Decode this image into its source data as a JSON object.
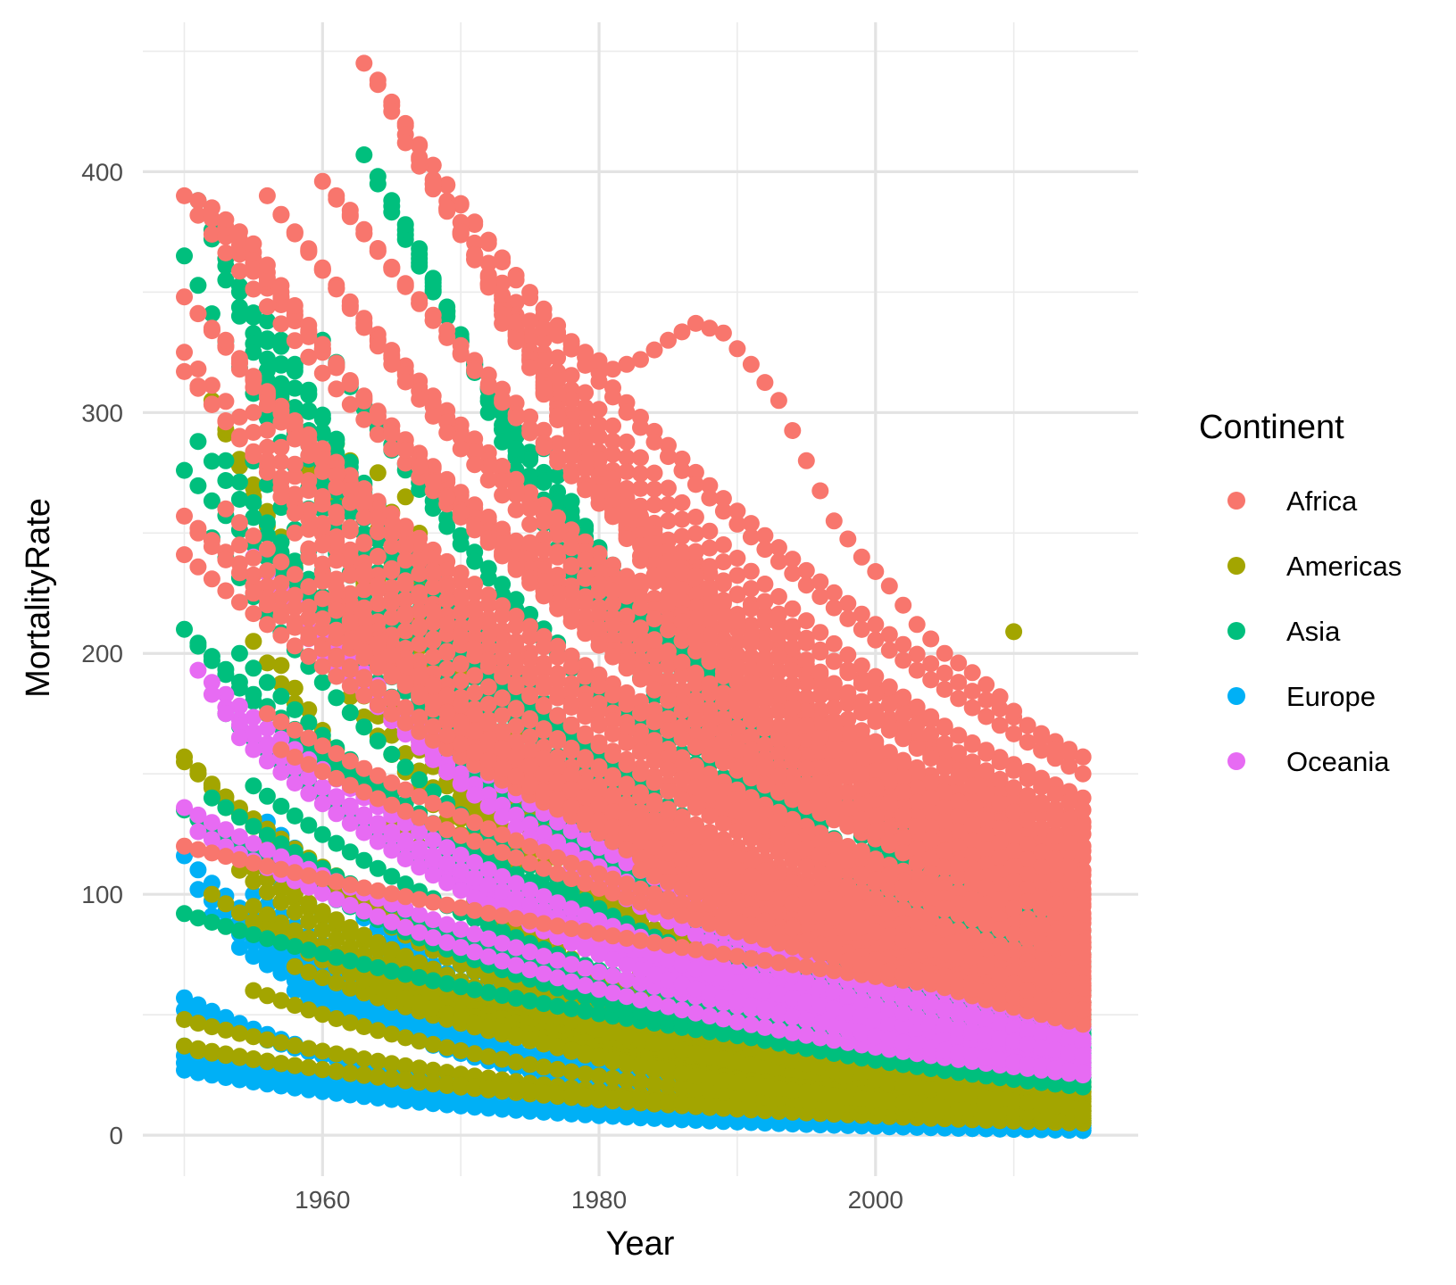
{
  "chart_data": {
    "type": "scatter",
    "title": "",
    "xlabel": "Year",
    "ylabel": "MortalityRate",
    "xlim": [
      1947,
      2019
    ],
    "ylim": [
      -17,
      462
    ],
    "x_ticks": [
      1960,
      1980,
      2000
    ],
    "x_tick_labels": [
      "1960",
      "1980",
      "2000"
    ],
    "x_minor_ticks": [
      1950,
      1970,
      1990,
      2010
    ],
    "y_ticks": [
      0,
      100,
      200,
      300,
      400
    ],
    "y_tick_labels": [
      "0",
      "100",
      "200",
      "300",
      "400"
    ],
    "y_minor_ticks": [
      50,
      150,
      250,
      350,
      450
    ],
    "grid": true,
    "legend": {
      "title": "Continent",
      "position": "right",
      "entries": [
        "Africa",
        "Americas",
        "Asia",
        "Europe",
        "Oceania"
      ]
    },
    "colors": {
      "Africa": "#F8766D",
      "Americas": "#A3A500",
      "Asia": "#00BF7D",
      "Europe": "#00B0F6",
      "Oceania": "#E76BF3"
    },
    "x_range": [
      1950,
      2015
    ],
    "series": [
      {
        "name": "Europe",
        "lines": [
          [
            1950,
            116,
            2015,
            4
          ],
          [
            1950,
            57,
            2015,
            2
          ],
          [
            1950,
            52,
            2015,
            3
          ],
          [
            1950,
            37,
            2015,
            2
          ],
          [
            1950,
            33,
            2015,
            3
          ],
          [
            1950,
            30,
            2015,
            2
          ],
          [
            1950,
            27,
            2015,
            2
          ],
          [
            1952,
            91,
            2015,
            6
          ],
          [
            1951,
            102,
            2015,
            5
          ],
          [
            1954,
            120,
            2015,
            8
          ],
          [
            1955,
            100,
            2015,
            6
          ],
          [
            1956,
            130,
            2015,
            10
          ],
          [
            1954,
            78,
            2015,
            4
          ],
          [
            1956,
            75,
            2015,
            5
          ],
          [
            1958,
            60,
            2015,
            4
          ],
          [
            1960,
            55,
            2015,
            5
          ],
          [
            1952,
            48,
            2015,
            3
          ],
          [
            1953,
            45,
            2015,
            3
          ],
          [
            1959,
            110,
            2015,
            7
          ],
          [
            1962,
            95,
            2015,
            6
          ]
        ]
      },
      {
        "name": "Americas",
        "lines": [
          [
            1950,
            157,
            2015,
            14
          ],
          [
            1950,
            155,
            2015,
            18
          ],
          [
            1951,
            150,
            2015,
            12
          ],
          [
            1952,
            305,
            2015,
            16
          ],
          [
            1953,
            293,
            2015,
            20
          ],
          [
            1955,
            270,
            2015,
            22
          ],
          [
            1957,
            305,
            2015,
            18
          ],
          [
            1958,
            300,
            2015,
            25
          ],
          [
            1959,
            292,
            2015,
            18
          ],
          [
            1961,
            287,
            2015,
            20
          ],
          [
            1962,
            280,
            2015,
            16
          ],
          [
            1964,
            275,
            2015,
            12
          ],
          [
            1966,
            265,
            2015,
            15
          ],
          [
            1953,
            120,
            2015,
            10
          ],
          [
            1954,
            110,
            2015,
            8
          ],
          [
            1955,
            95,
            2015,
            10
          ],
          [
            1956,
            90,
            2015,
            7
          ],
          [
            1958,
            100,
            2015,
            12
          ],
          [
            1960,
            75,
            2015,
            9
          ],
          [
            1950,
            48,
            2015,
            6
          ],
          [
            1950,
            37,
            2015,
            5
          ],
          [
            1951,
            35,
            2015,
            6
          ],
          [
            1955,
            60,
            2015,
            7
          ],
          [
            1958,
            70,
            2015,
            10
          ],
          [
            1960,
            200,
            2015,
            15
          ],
          [
            1962,
            240,
            2015,
            20
          ],
          [
            1965,
            180,
            2015,
            12
          ],
          [
            1952,
            100,
            2015,
            8
          ],
          [
            1955,
            205,
            2015,
            14
          ],
          [
            1957,
            195,
            2015,
            11
          ]
        ],
        "points": [
          [
            2010,
            209
          ],
          [
            1999,
            26
          ]
        ]
      },
      {
        "name": "Asia",
        "lines": [
          [
            1950,
            365,
            2015,
            40
          ],
          [
            1950,
            276,
            2015,
            60
          ],
          [
            1950,
            210,
            2015,
            35
          ],
          [
            1950,
            92,
            2015,
            25
          ],
          [
            1951,
            388,
            2015,
            50
          ],
          [
            1951,
            288,
            2015,
            45
          ],
          [
            1951,
            203,
            2015,
            30
          ],
          [
            1952,
            372,
            2015,
            55
          ],
          [
            1952,
            248,
            2015,
            28
          ],
          [
            1953,
            355,
            2015,
            48
          ],
          [
            1953,
            280,
            2015,
            38
          ],
          [
            1954,
            340,
            2015,
            42
          ],
          [
            1954,
            290,
            2015,
            33
          ],
          [
            1955,
            325,
            2015,
            36
          ],
          [
            1956,
            338,
            2015,
            52
          ],
          [
            1957,
            330,
            2015,
            44
          ],
          [
            1958,
            320,
            2015,
            46
          ],
          [
            1959,
            260,
            2015,
            32
          ],
          [
            1960,
            330,
            2015,
            70
          ],
          [
            1961,
            320,
            2015,
            65
          ],
          [
            1963,
            407,
            2015,
            85
          ],
          [
            1964,
            398,
            2015,
            80
          ],
          [
            1965,
            388,
            2015,
            78
          ],
          [
            1966,
            378,
            2015,
            75
          ],
          [
            1967,
            368,
            2015,
            72
          ],
          [
            1968,
            355,
            2015,
            62
          ],
          [
            1969,
            342,
            2015,
            58
          ],
          [
            1970,
            330,
            2015,
            55
          ],
          [
            1972,
            300,
            2015,
            50
          ],
          [
            1974,
            285,
            2015,
            48
          ],
          [
            1976,
            285,
            2015,
            60
          ],
          [
            1952,
            140,
            2015,
            22
          ],
          [
            1953,
            175,
            2015,
            26
          ],
          [
            1955,
            145,
            2015,
            24
          ],
          [
            1956,
            160,
            2015,
            28
          ],
          [
            1950,
            135,
            2015,
            20
          ],
          [
            1954,
            200,
            2015,
            30
          ],
          [
            1958,
            230,
            2015,
            34
          ],
          [
            1960,
            250,
            2015,
            38
          ],
          [
            1962,
            265,
            2015,
            42
          ]
        ]
      },
      {
        "name": "Oceania",
        "lines": [
          [
            1950,
            136,
            2015,
            30
          ],
          [
            1951,
            193,
            2015,
            35
          ],
          [
            1951,
            126,
            2015,
            25
          ],
          [
            1952,
            183,
            2015,
            28
          ],
          [
            1953,
            175,
            2015,
            32
          ],
          [
            1954,
            165,
            2015,
            26
          ],
          [
            1956,
            225,
            2015,
            40
          ],
          [
            1959,
            210,
            2015,
            38
          ],
          [
            1962,
            190,
            2015,
            33
          ],
          [
            1955,
            240,
            2015,
            45
          ]
        ]
      },
      {
        "name": "Africa",
        "lines": [
          [
            1950,
            390,
            2015,
            100
          ],
          [
            1950,
            348,
            2015,
            95
          ],
          [
            1950,
            325,
            2015,
            80
          ],
          [
            1950,
            317,
            2015,
            75
          ],
          [
            1950,
            257,
            2015,
            70
          ],
          [
            1950,
            241,
            2015,
            60
          ],
          [
            1950,
            120,
            2015,
            55
          ],
          [
            1951,
            388,
            2015,
            110
          ],
          [
            1951,
            341,
            2015,
            90
          ],
          [
            1951,
            311,
            2015,
            65
          ],
          [
            1951,
            250,
            2015,
            58
          ],
          [
            1952,
            385,
            2015,
            105
          ],
          [
            1953,
            380,
            2015,
            98
          ],
          [
            1954,
            375,
            2015,
            92
          ],
          [
            1955,
            370,
            2015,
            88
          ],
          [
            1956,
            390,
            2015,
            120
          ],
          [
            1957,
            382,
            2015,
            115
          ],
          [
            1958,
            375,
            2015,
            110
          ],
          [
            1959,
            368,
            2015,
            100
          ],
          [
            1960,
            396,
            2015,
            140
          ],
          [
            1961,
            390,
            2015,
            130
          ],
          [
            1962,
            384,
            2015,
            125
          ],
          [
            1963,
            445,
            2015,
            157
          ],
          [
            1964,
            438,
            2015,
            150
          ],
          [
            1965,
            425,
            2015,
            135
          ],
          [
            1966,
            412,
            2015,
            128
          ],
          [
            1967,
            405,
            2015,
            118
          ],
          [
            1968,
            395,
            2015,
            108
          ],
          [
            1969,
            385,
            2015,
            102
          ],
          [
            1970,
            375,
            2015,
            96
          ],
          [
            1971,
            365,
            2015,
            90
          ],
          [
            1972,
            352,
            2015,
            85
          ],
          [
            1974,
            330,
            2015,
            78
          ],
          [
            1976,
            310,
            2015,
            72
          ],
          [
            1955,
            300,
            2015,
            68
          ],
          [
            1956,
            280,
            2015,
            62
          ],
          [
            1957,
            265,
            2015,
            58
          ],
          [
            1958,
            250,
            2015,
            55
          ],
          [
            1959,
            240,
            2015,
            52
          ],
          [
            1960,
            230,
            2015,
            50
          ],
          [
            1961,
            220,
            2015,
            48
          ],
          [
            1962,
            210,
            2015,
            46
          ],
          [
            1952,
            335,
            2015,
            82
          ],
          [
            1953,
            330,
            2015,
            78
          ],
          [
            1954,
            318,
            2015,
            74
          ],
          [
            1953,
            260,
            2015,
            66
          ],
          [
            1954,
            245,
            2015,
            63
          ],
          [
            1955,
            225,
            2015,
            61
          ],
          [
            1956,
            175,
            2015,
            54
          ],
          [
            1957,
            160,
            2015,
            52
          ]
        ],
        "curves": [
          [
            [
              1973,
              337
            ],
            [
              1975,
              338
            ],
            [
              1977,
              332
            ],
            [
              1979,
              325
            ],
            [
              1981,
              318
            ],
            [
              1983,
              322
            ],
            [
              1985,
              330
            ],
            [
              1987,
              337
            ],
            [
              1989,
              333
            ],
            [
              1991,
              320
            ],
            [
              1993,
              305
            ],
            [
              1995,
              280
            ],
            [
              1997,
              255
            ],
            [
              1999,
              240
            ],
            [
              2001,
              228
            ],
            [
              2003,
              212
            ],
            [
              2005,
              200
            ],
            [
              2007,
              192
            ],
            [
              2009,
              182
            ],
            [
              2011,
              170
            ],
            [
              2013,
              160
            ],
            [
              2015,
              157
            ]
          ],
          [
            [
              1975,
              246
            ],
            [
              1977,
              240
            ],
            [
              1979,
              232
            ],
            [
              1981,
              226
            ],
            [
              1983,
              230
            ],
            [
              1985,
              235
            ],
            [
              1987,
              232
            ],
            [
              1989,
              222
            ],
            [
              1991,
              205
            ],
            [
              1993,
              185
            ],
            [
              1995,
              170
            ],
            [
              1997,
              160
            ],
            [
              1999,
              150
            ],
            [
              2001,
              138
            ],
            [
              2003,
              128
            ],
            [
              2005,
              118
            ],
            [
              2007,
              108
            ],
            [
              2009,
              98
            ],
            [
              2011,
              90
            ],
            [
              2013,
              84
            ],
            [
              2015,
              80
            ]
          ],
          [
            [
              1983,
              110
            ],
            [
              1985,
              105
            ],
            [
              1987,
              100
            ],
            [
              1989,
              92
            ],
            [
              1991,
              84
            ],
            [
              1993,
              80
            ],
            [
              1995,
              92
            ],
            [
              1997,
              110
            ],
            [
              1999,
              118
            ],
            [
              2001,
              108
            ],
            [
              2003,
              98
            ],
            [
              2005,
              86
            ],
            [
              2007,
              74
            ],
            [
              2009,
              66
            ],
            [
              2011,
              60
            ],
            [
              2013,
              56
            ],
            [
              2015,
              52
            ]
          ]
        ]
      }
    ]
  }
}
